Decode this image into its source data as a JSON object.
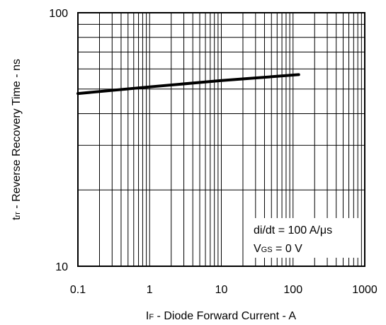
{
  "chart_data": {
    "type": "line",
    "title": "",
    "xscale": "log",
    "yscale": "log",
    "xlim": [
      0.1,
      1000
    ],
    "ylim": [
      10,
      100
    ],
    "grid": true,
    "xlabel": {
      "main": "I",
      "sub": "F",
      "rest": " - Diode Forward Current - A"
    },
    "ylabel": {
      "main": "t",
      "sub": "rr",
      "rest": " - Reverse Recovery Time - ns"
    },
    "xticks": [
      {
        "value": 0.1,
        "label": "0.1"
      },
      {
        "value": 1,
        "label": "1"
      },
      {
        "value": 10,
        "label": "10"
      },
      {
        "value": 100,
        "label": "100"
      },
      {
        "value": 1000,
        "label": "1000"
      }
    ],
    "yticks": [
      {
        "value": 10,
        "label": "10"
      },
      {
        "value": 100,
        "label": "100"
      }
    ],
    "series": [
      {
        "x": [
          0.1,
          1,
          10,
          120
        ],
        "y": [
          48,
          51,
          54,
          57
        ]
      }
    ],
    "annotations": [
      {
        "text": "di/dt = 100 A/μs"
      },
      {
        "main": "V",
        "sub": "GS",
        "rest": " = 0 V"
      }
    ]
  }
}
